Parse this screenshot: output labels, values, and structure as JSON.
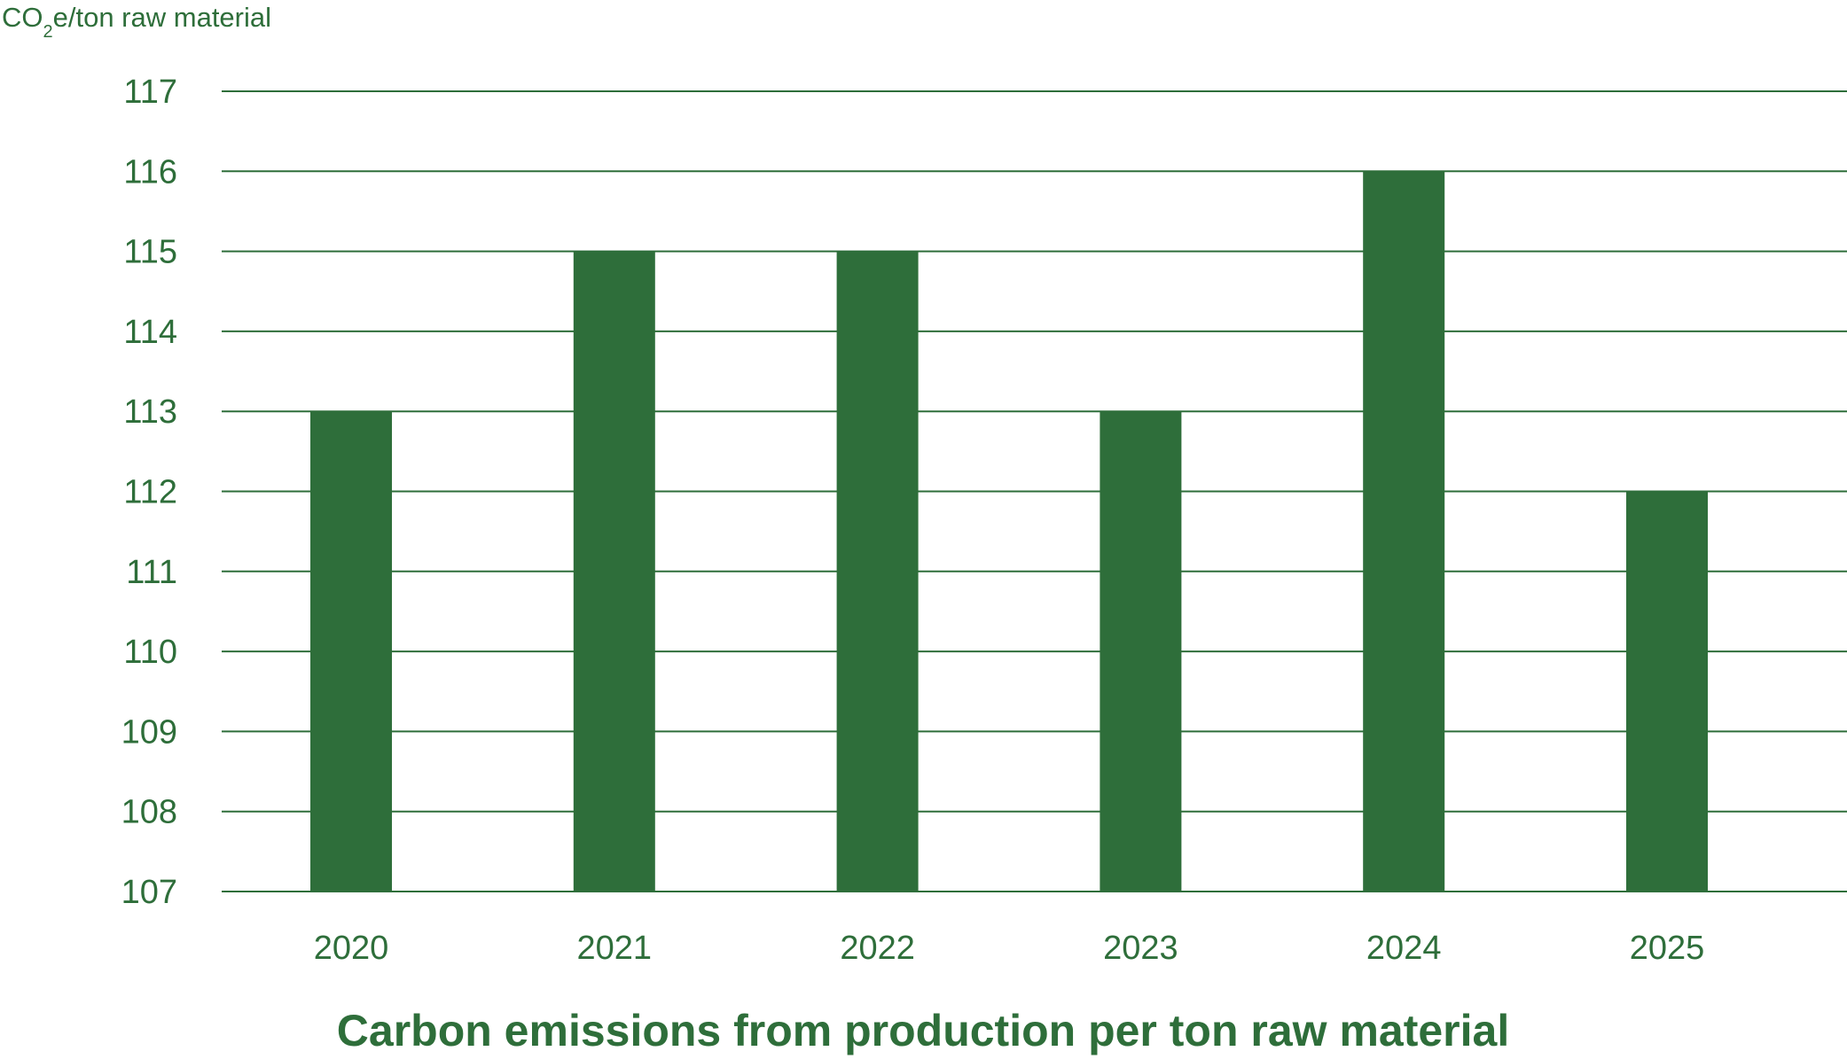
{
  "chart_data": {
    "type": "bar",
    "title": "Carbon emissions from production per ton raw material",
    "ylabel": {
      "prefix": "CO",
      "subscript": "2",
      "suffix": "e/ton raw material"
    },
    "xlabel": "",
    "categories": [
      "2020",
      "2021",
      "2022",
      "2023",
      "2024",
      "2025"
    ],
    "values": [
      113,
      115,
      115,
      113,
      116,
      112
    ],
    "ylim": [
      107,
      117
    ],
    "yticks": [
      "107",
      "108",
      "109",
      "110",
      "111",
      "112",
      "113",
      "114",
      "115",
      "116",
      "117"
    ],
    "grid": true,
    "colors": {
      "bar": "#2e6e3a",
      "text": "#2e6e3a",
      "grid": "#2e6e3a"
    }
  }
}
